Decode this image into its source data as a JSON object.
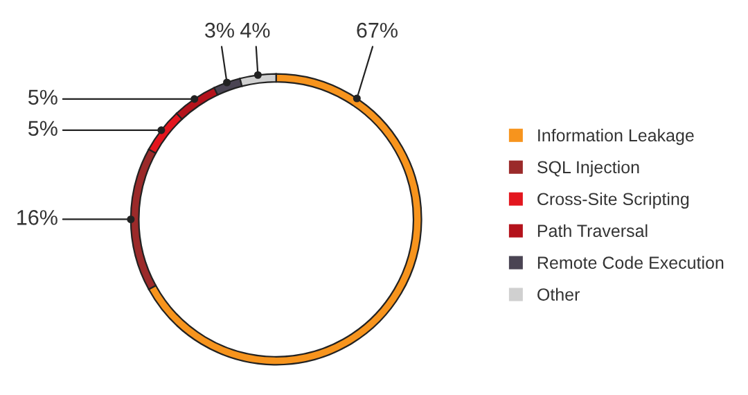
{
  "chart_data": {
    "type": "donut",
    "categories": [
      "Information Leakage",
      "SQL Injection",
      "Cross-Site Scripting",
      "Path Traversal",
      "Remote Code Execution",
      "Other"
    ],
    "values": [
      67,
      16,
      5,
      5,
      3,
      4
    ],
    "colors": [
      "#f7941d",
      "#9b2a2a",
      "#e3161e",
      "#b4121b",
      "#4a4453",
      "#d0d0d0"
    ],
    "value_labels": [
      "67%",
      "16%",
      "5%",
      "5%",
      "3%",
      "4%"
    ],
    "legend": "right"
  }
}
